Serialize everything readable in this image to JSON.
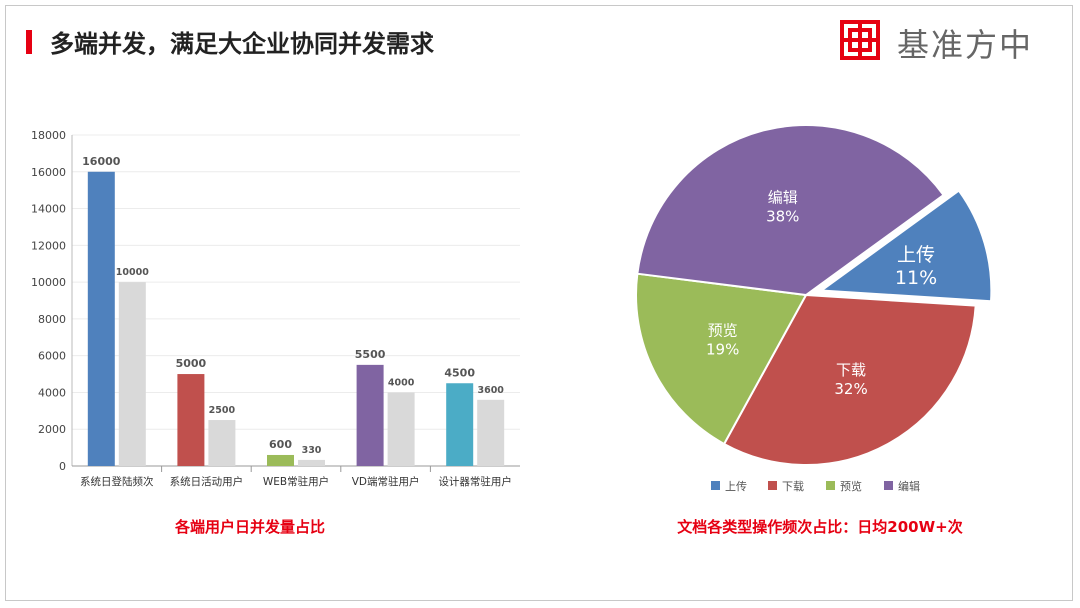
{
  "header": {
    "title": "多端并发，满足大企业协同并发需求",
    "brand": "基准方中",
    "accent_color": "#e60012"
  },
  "captions": {
    "bar_chart": "各端用户日并发量占比",
    "pie_chart": "文档各类型操作频次占比：日均200W+次"
  },
  "chart_data": [
    {
      "type": "bar",
      "categories": [
        "系统日登陆频次",
        "系统日活动用户",
        "WEB常驻用户",
        "VD端常驻用户",
        "设计器常驻用户"
      ],
      "series": [
        {
          "values": [
            16000,
            5000,
            600,
            5500,
            4500
          ],
          "colors": [
            "#4f81bd",
            "#c0504d",
            "#9bbb59",
            "#8064a2",
            "#4bacc6"
          ]
        },
        {
          "values": [
            10000,
            2500,
            330,
            4000,
            3600
          ],
          "color": "#d9d9d9"
        }
      ],
      "ylim": [
        0,
        18000
      ],
      "yticks": [
        0,
        2000,
        4000,
        6000,
        8000,
        10000,
        12000,
        14000,
        16000,
        18000
      ],
      "grid": true
    },
    {
      "type": "pie",
      "slices": [
        {
          "label": "上传",
          "value": 11,
          "display": "11%",
          "color": "#4f81bd",
          "exploded": true
        },
        {
          "label": "下载",
          "value": 32,
          "display": "32%",
          "color": "#c0504d"
        },
        {
          "label": "预览",
          "value": 19,
          "display": "19%",
          "color": "#9bbb59"
        },
        {
          "label": "编辑",
          "value": 38,
          "display": "38%",
          "color": "#8064a2"
        }
      ],
      "legend": "bottom"
    }
  ]
}
